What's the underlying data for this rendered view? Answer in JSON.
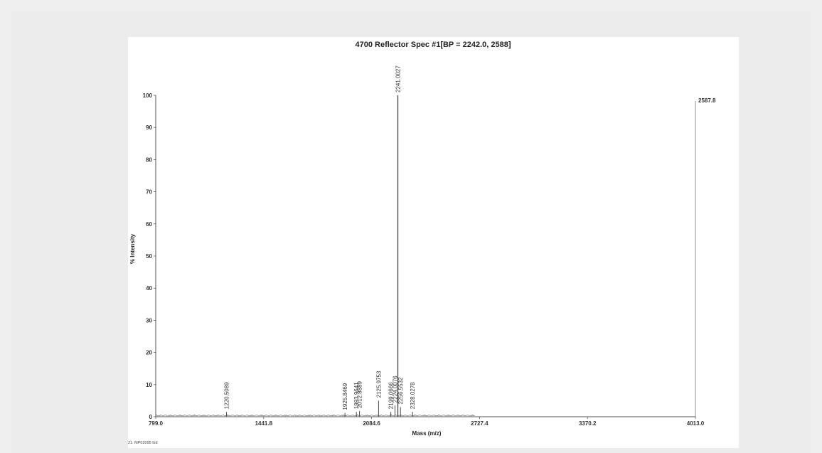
{
  "chart_data": {
    "type": "line",
    "title": "4700 Reflector Spec #1[BP = 2242.0, 2588]",
    "xlabel": "Mass (m/z)",
    "ylabel": "% Intensity",
    "xlim": [
      799.0,
      4013.0
    ],
    "ylim": [
      0,
      100
    ],
    "x_ticks": [
      "799.0",
      "1441.8",
      "2084.6",
      "2727.4",
      "3370.2",
      "4013.0"
    ],
    "y_ticks": [
      "0",
      "10",
      "20",
      "30",
      "40",
      "50",
      "60",
      "70",
      "80",
      "90",
      "100"
    ],
    "max_intensity_label": "2587.8",
    "footer_note": "21. MP02095 fzd",
    "grid": false,
    "peaks": [
      {
        "mz": 1220.5089,
        "intensity": 1.5,
        "label": "1220.5089"
      },
      {
        "mz": 1925.8469,
        "intensity": 1.2,
        "label": "1925.8469"
      },
      {
        "mz": 1993.9641,
        "intensity": 1.5,
        "label": "1993.9641"
      },
      {
        "mz": 2012.8889,
        "intensity": 1.8,
        "label": "2012.8889"
      },
      {
        "mz": 2125.9753,
        "intensity": 5.0,
        "label": "2125.9753"
      },
      {
        "mz": 2199.0666,
        "intensity": 1.5,
        "label": "2199.0666"
      },
      {
        "mz": 2224.0076,
        "intensity": 3.5,
        "label": "2224.0076"
      },
      {
        "mz": 2241.0027,
        "intensity": 100,
        "label": "2241.0027"
      },
      {
        "mz": 2256.5532,
        "intensity": 3.0,
        "label": "2256.5532"
      },
      {
        "mz": 2328.0278,
        "intensity": 1.5,
        "label": "2328.0278"
      }
    ]
  }
}
